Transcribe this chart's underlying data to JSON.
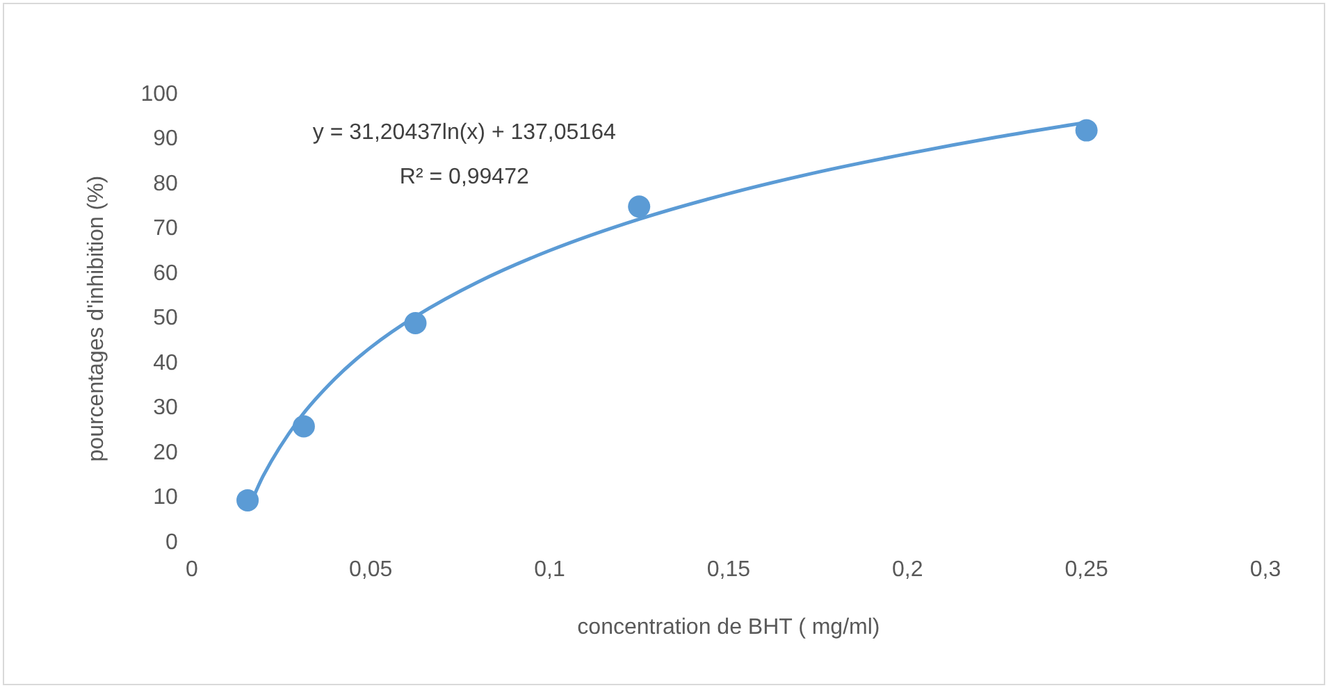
{
  "chart_data": {
    "type": "scatter",
    "xlabel": "concentration de BHT ( mg/ml)",
    "ylabel": "pourcentages d'inhibition (%)",
    "annotations": [
      "y = 31,20437ln(x) + 137,05164",
      "R² = 0,99472"
    ],
    "xlim": [
      0,
      0.3
    ],
    "ylim": [
      0,
      100
    ],
    "xticks": [
      0,
      {
        "value": 0.05,
        "label": "0,05"
      },
      {
        "value": 0.1,
        "label": "0,1"
      },
      {
        "value": 0.15,
        "label": "0,15"
      },
      {
        "value": 0.2,
        "label": "0,2"
      },
      {
        "value": 0.25,
        "label": "0,25"
      },
      {
        "value": 0.3,
        "label": "0,3"
      }
    ],
    "yticks": [
      0,
      10,
      20,
      30,
      40,
      50,
      60,
      70,
      80,
      90,
      100
    ],
    "grid": false,
    "legend": false,
    "series": [
      {
        "type": "line",
        "color": "#5b9bd5",
        "marker": "none",
        "line_style": "solid",
        "x": [
          0.0156,
          0.02,
          0.03,
          0.04,
          0.05,
          0.0625,
          0.08,
          0.1,
          0.125,
          0.15,
          0.175,
          0.2,
          0.225,
          0.25
        ],
        "values": [
          7.2,
          15.0,
          27.6,
          36.6,
          43.6,
          50.5,
          58.2,
          65.2,
          72.2,
          77.9,
          82.7,
          86.8,
          90.5,
          93.8
        ]
      },
      {
        "type": "scatter",
        "color": "#5b9bd5",
        "marker": "circle",
        "x": [
          0.0156,
          0.0313,
          0.0625,
          0.125,
          0.25
        ],
        "values": [
          9.5,
          26,
          49,
          75,
          92
        ]
      }
    ]
  }
}
